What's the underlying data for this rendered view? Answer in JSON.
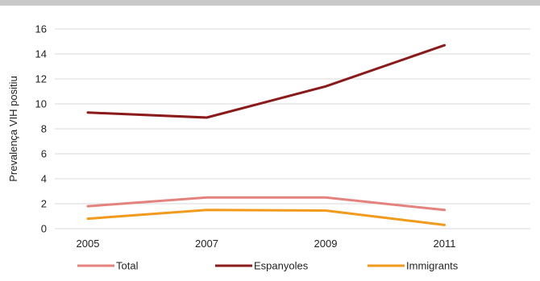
{
  "chart_data": {
    "type": "line",
    "title": "",
    "xlabel": "",
    "ylabel": "Prevalença VIH positiu",
    "categories": [
      "2005",
      "2007",
      "2009",
      "2011"
    ],
    "ylim": [
      0,
      16
    ],
    "yticks": [
      "0",
      "2",
      "4",
      "6",
      "8",
      "10",
      "12",
      "14",
      "16"
    ],
    "grid": true,
    "legend_position": "bottom",
    "series": [
      {
        "name": "Total",
        "color": "#e4837d",
        "values": [
          1.8,
          2.5,
          2.5,
          1.5
        ]
      },
      {
        "name": "Espanyoles",
        "color": "#8b1a1a",
        "values": [
          9.3,
          8.9,
          11.4,
          14.7
        ]
      },
      {
        "name": "Immigrants",
        "color": "#f29a1b",
        "values": [
          0.8,
          1.5,
          1.45,
          0.3
        ]
      }
    ]
  }
}
